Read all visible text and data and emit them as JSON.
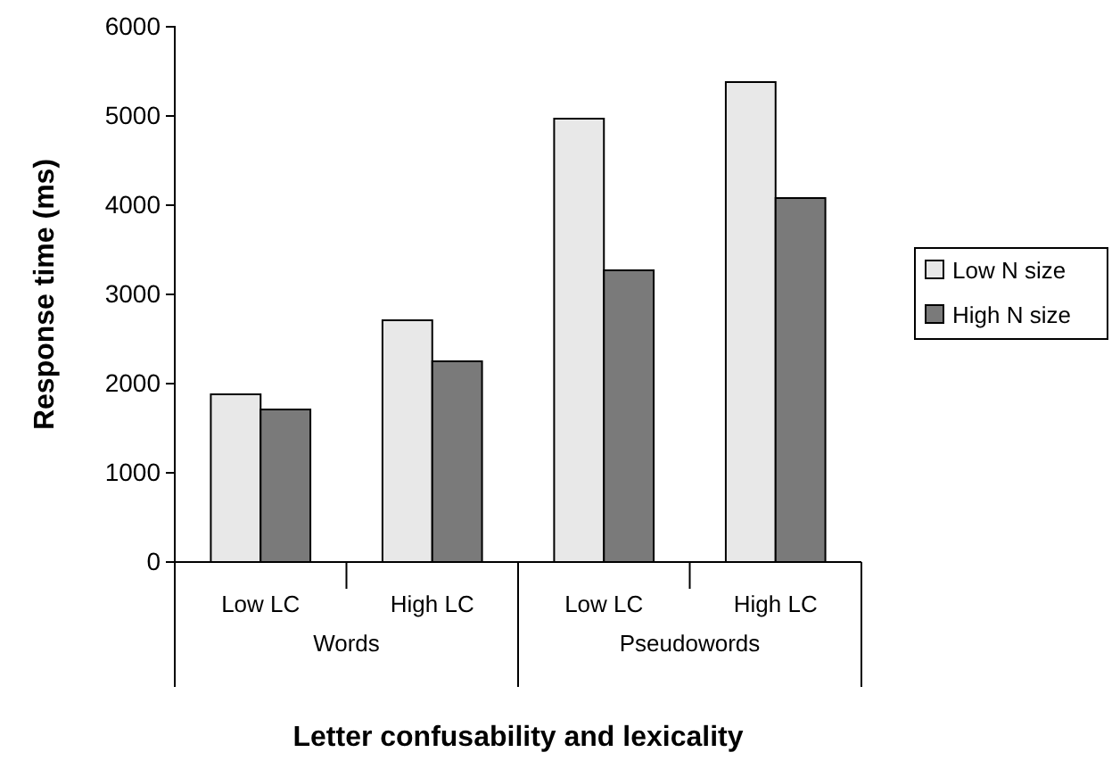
{
  "chart_data": {
    "type": "bar",
    "xlabel": "Letter confusability and lexicality",
    "ylabel": "Response time (ms)",
    "categories": [
      "Low LC",
      "High LC",
      "Low LC",
      "High LC"
    ],
    "series": [
      {
        "name": "Low N size",
        "color": "#e8e8e8",
        "values": [
          1880,
          2710,
          4970,
          5380
        ]
      },
      {
        "name": "High N size",
        "color": "#7a7a7a",
        "values": [
          1710,
          2250,
          3270,
          4080
        ]
      }
    ],
    "annotations": [
      "Words",
      "Pseudowords"
    ],
    "ylim": [
      0,
      6000
    ],
    "yticks": [
      0,
      1000,
      2000,
      3000,
      4000,
      5000,
      6000
    ],
    "grid": false,
    "legend": "right"
  }
}
